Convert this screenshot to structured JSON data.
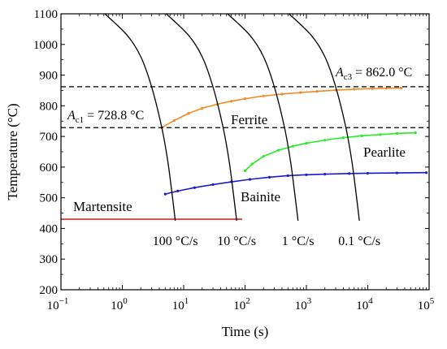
{
  "chart_data": {
    "type": "line",
    "title": "",
    "xlabel": "Time (s)",
    "ylabel": "Temperature (°C)",
    "xscale": "log",
    "xlim": [
      0.1,
      100000
    ],
    "ylim": [
      200,
      1100
    ],
    "grid": false,
    "x_ticks": [
      {
        "value": 0.1,
        "base": "10",
        "exp": "−1"
      },
      {
        "value": 1,
        "base": "10",
        "exp": "0"
      },
      {
        "value": 10,
        "base": "10",
        "exp": "1"
      },
      {
        "value": 100,
        "base": "10",
        "exp": "2"
      },
      {
        "value": 1000,
        "base": "10",
        "exp": "3"
      },
      {
        "value": 10000,
        "base": "10",
        "exp": "4"
      },
      {
        "value": 100000,
        "base": "10",
        "exp": "5"
      }
    ],
    "y_ticks": [
      200,
      300,
      400,
      500,
      600,
      700,
      800,
      900,
      1000,
      1100
    ],
    "reference_lines": [
      {
        "symbol": "A",
        "sub": "c3",
        "value": 862.0,
        "text": " = 862.0 °C"
      },
      {
        "symbol": "A",
        "sub": "c1",
        "value": 728.8,
        "text": " = 728.8 °C"
      }
    ],
    "cooling_curves": [
      {
        "label": "100 °C/s",
        "points": [
          [
            0.52,
            1100
          ],
          [
            1.2,
            1030
          ],
          [
            2.0,
            960
          ],
          [
            3.0,
            862
          ],
          [
            4.4,
            728.8
          ],
          [
            5.5,
            620
          ],
          [
            6.4,
            520
          ],
          [
            7.3,
            425
          ]
        ]
      },
      {
        "label": "10 °C/s",
        "points": [
          [
            5.2,
            1100
          ],
          [
            12,
            1030
          ],
          [
            20,
            960
          ],
          [
            30,
            862
          ],
          [
            44,
            728.8
          ],
          [
            55,
            620
          ],
          [
            64,
            520
          ],
          [
            73,
            425
          ]
        ]
      },
      {
        "label": "1 °C/s",
        "points": [
          [
            52,
            1100
          ],
          [
            120,
            1030
          ],
          [
            200,
            960
          ],
          [
            300,
            862
          ],
          [
            440,
            728.8
          ],
          [
            550,
            620
          ],
          [
            640,
            520
          ],
          [
            730,
            425
          ]
        ]
      },
      {
        "label": "0.1 °C/s",
        "points": [
          [
            520,
            1100
          ],
          [
            1200,
            1030
          ],
          [
            2000,
            960
          ],
          [
            3000,
            862
          ],
          [
            4400,
            728.8
          ],
          [
            5500,
            620
          ],
          [
            6400,
            520
          ],
          [
            7300,
            425
          ]
        ]
      }
    ],
    "series": [
      {
        "name": "Ferrite",
        "color": "#f08a24",
        "x": [
          4.4,
          7,
          12,
          20,
          35,
          60,
          100,
          200,
          400,
          800,
          1500,
          3000,
          6000,
          12000,
          20000,
          35000
        ],
        "y": [
          728.8,
          752,
          775,
          792,
          805,
          815,
          823,
          832,
          838,
          843,
          847,
          851,
          854,
          856,
          857,
          858
        ]
      },
      {
        "name": "Pearlite",
        "color": "#22ee22",
        "x": [
          100,
          130,
          200,
          350,
          600,
          1000,
          2000,
          4000,
          8000,
          16000,
          30000,
          60000
        ],
        "y": [
          588,
          610,
          635,
          655,
          668,
          678,
          688,
          696,
          702,
          706,
          710,
          712
        ]
      },
      {
        "name": "Bainite",
        "color": "#1a1ad0",
        "x": [
          5,
          8,
          15,
          30,
          60,
          120,
          250,
          500,
          1000,
          2000,
          5000,
          10000,
          30000,
          90000
        ],
        "y": [
          512,
          522,
          533,
          543,
          552,
          560,
          567,
          572,
          575,
          577,
          579,
          580,
          581,
          582
        ]
      },
      {
        "name": "Martensite",
        "color": "#ee2222",
        "x": [
          0.1,
          90
        ],
        "y": [
          430,
          430
        ]
      }
    ]
  }
}
